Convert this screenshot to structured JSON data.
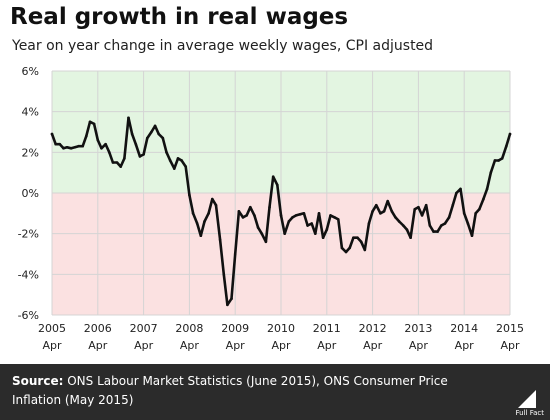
{
  "title": "Real growth in real wages",
  "subtitle": "Year on year change in average weekly wages, CPI adjusted",
  "source_label": "Source:",
  "source_text": "ONS Labour Market Statistics (June 2015), ONS Consumer Price Inflation (May 2015)",
  "logo_text": "Full Fact",
  "colors": {
    "positive_zone": "#e3f5e1",
    "negative_zone": "#fbe1e1",
    "line": "#111111",
    "grid": "#d4d4d4",
    "footer": "#2b2b2b"
  },
  "chart_data": {
    "type": "line",
    "title": "Real growth in real wages",
    "subtitle": "Year on year change in average weekly wages, CPI adjusted",
    "xlabel": "",
    "ylabel": "",
    "xlim": [
      2005.25,
      2015.25
    ],
    "ylim": [
      -6,
      6
    ],
    "y_ticks": [
      "6%",
      "4%",
      "2%",
      "0%",
      "-2%",
      "-4%",
      "-6%"
    ],
    "y_tick_values": [
      6,
      4,
      2,
      0,
      -2,
      -4,
      -6
    ],
    "x_ticks": [
      {
        "value": 2005.25,
        "year": "2005",
        "month": "Apr"
      },
      {
        "value": 2006.25,
        "year": "2006",
        "month": "Apr"
      },
      {
        "value": 2007.25,
        "year": "2007",
        "month": "Apr"
      },
      {
        "value": 2008.25,
        "year": "2008",
        "month": "Apr"
      },
      {
        "value": 2009.25,
        "year": "2009",
        "month": "Apr"
      },
      {
        "value": 2010.25,
        "year": "2010",
        "month": "Apr"
      },
      {
        "value": 2011.25,
        "year": "2011",
        "month": "Apr"
      },
      {
        "value": 2012.25,
        "year": "2012",
        "month": "Apr"
      },
      {
        "value": 2013.25,
        "year": "2013",
        "month": "Apr"
      },
      {
        "value": 2014.25,
        "year": "2014",
        "month": "Apr"
      },
      {
        "value": 2015.25,
        "year": "2015",
        "month": "Apr"
      }
    ],
    "grid": true,
    "shading": "green above 0%, red below 0%",
    "series": [
      {
        "x": [
          2005.25,
          2005.33,
          2005.42,
          2005.5,
          2005.58,
          2005.67,
          2005.75,
          2005.83,
          2005.92,
          2006.0,
          2006.08,
          2006.17,
          2006.25,
          2006.33,
          2006.42,
          2006.5,
          2006.58,
          2006.67,
          2006.75,
          2006.83,
          2006.92,
          2007.0,
          2007.08,
          2007.17,
          2007.25,
          2007.33,
          2007.42,
          2007.5,
          2007.58,
          2007.67,
          2007.75,
          2007.83,
          2007.92,
          2008.0,
          2008.08,
          2008.17,
          2008.25,
          2008.33,
          2008.42,
          2008.5,
          2008.58,
          2008.67,
          2008.75,
          2008.83,
          2008.92,
          2009.0,
          2009.08,
          2009.17,
          2009.25,
          2009.33,
          2009.42,
          2009.5,
          2009.58,
          2009.67,
          2009.75,
          2009.83,
          2009.92,
          2010.0,
          2010.08,
          2010.17,
          2010.25,
          2010.33,
          2010.42,
          2010.5,
          2010.58,
          2010.67,
          2010.75,
          2010.83,
          2010.92,
          2011.0,
          2011.08,
          2011.17,
          2011.25,
          2011.33,
          2011.42,
          2011.5,
          2011.58,
          2011.67,
          2011.75,
          2011.83,
          2011.92,
          2012.0,
          2012.08,
          2012.17,
          2012.25,
          2012.33,
          2012.42,
          2012.5,
          2012.58,
          2012.67,
          2012.75,
          2012.83,
          2012.92,
          2013.0,
          2013.08,
          2013.17,
          2013.25,
          2013.33,
          2013.42,
          2013.5,
          2013.58,
          2013.67,
          2013.75,
          2013.83,
          2013.92,
          2014.0,
          2014.08,
          2014.17,
          2014.25,
          2014.33,
          2014.42,
          2014.5,
          2014.58,
          2014.67,
          2014.75,
          2014.83,
          2014.92,
          2015.0,
          2015.08,
          2015.17,
          2015.25
        ],
        "y": [
          2.9,
          2.4,
          2.4,
          2.2,
          2.25,
          2.2,
          2.25,
          2.3,
          2.3,
          2.8,
          3.5,
          3.4,
          2.6,
          2.2,
          2.4,
          2.0,
          1.5,
          1.5,
          1.3,
          1.7,
          3.7,
          2.9,
          2.4,
          1.8,
          1.9,
          2.7,
          3.0,
          3.3,
          2.9,
          2.7,
          2.0,
          1.6,
          1.2,
          1.7,
          1.6,
          1.3,
          -0.1,
          -1.0,
          -1.5,
          -2.1,
          -1.4,
          -1.0,
          -0.3,
          -0.6,
          -2.3,
          -4.0,
          -5.5,
          -5.2,
          -3.0,
          -0.9,
          -1.2,
          -1.1,
          -0.7,
          -1.1,
          -1.7,
          -2.0,
          -2.4,
          -0.7,
          0.8,
          0.4,
          -1.1,
          -2.0,
          -1.4,
          -1.2,
          -1.1,
          -1.05,
          -1.0,
          -1.6,
          -1.5,
          -2.0,
          -1.0,
          -2.2,
          -1.8,
          -1.1,
          -1.2,
          -1.3,
          -2.7,
          -2.9,
          -2.7,
          -2.2,
          -2.2,
          -2.4,
          -2.8,
          -1.5,
          -0.9,
          -0.6,
          -1.0,
          -0.9,
          -0.4,
          -0.9,
          -1.2,
          -1.4,
          -1.6,
          -1.8,
          -2.2,
          -0.8,
          -0.7,
          -1.1,
          -0.6,
          -1.6,
          -1.9,
          -1.9,
          -1.6,
          -1.5,
          -1.2,
          -0.6,
          0.0,
          0.2,
          -1.0,
          -1.5,
          -2.1,
          -1.0,
          -0.8,
          -0.3,
          0.2,
          1.0,
          1.6,
          1.6,
          1.7,
          2.3,
          2.9
        ]
      }
    ]
  }
}
